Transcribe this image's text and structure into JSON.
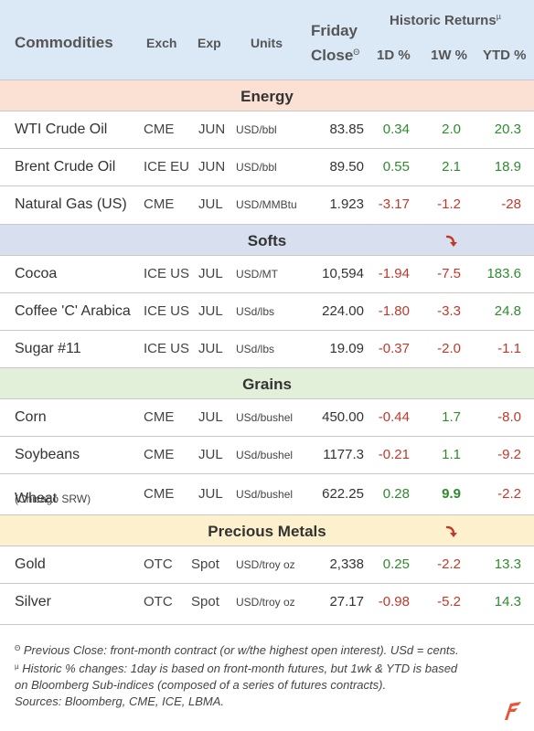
{
  "header": {
    "commodities": "Commodities",
    "exch": "Exch",
    "exp": "Exp",
    "units": "Units",
    "friday": "Friday",
    "close": "Close",
    "close_mark": "Θ",
    "historic": "Historic Returns",
    "historic_mark": "µ",
    "d1": "1D %",
    "w1": "1W %",
    "ytd": "YTD %"
  },
  "sections": {
    "energy": "Energy",
    "softs": "Softs",
    "grains": "Grains",
    "metals": "Precious Metals"
  },
  "rows": {
    "wti": {
      "name": "WTI Crude Oil",
      "exch": "CME",
      "exp": "JUN",
      "units": "USD/bbl",
      "close": "83.85",
      "d1": "0.34",
      "w1": "2.0",
      "ytd": "20.3"
    },
    "brent": {
      "name": "Brent Crude Oil",
      "exch": "ICE EU",
      "exp": "JUN",
      "units": "USD/bbl",
      "close": "89.50",
      "d1": "0.55",
      "w1": "2.1",
      "ytd": "18.9"
    },
    "natgas": {
      "name": "Natural Gas (US)",
      "exch": "CME",
      "exp": "JUL",
      "units": "USD/MMBtu",
      "close": "1.923",
      "d1": "-3.17",
      "w1": "-1.2",
      "ytd": "-28"
    },
    "cocoa": {
      "name": "Cocoa",
      "exch": "ICE US",
      "exp": "JUL",
      "units": "USD/MT",
      "close": "10,594",
      "d1": "-1.94",
      "w1": "-7.5",
      "ytd": "183.6"
    },
    "coffee": {
      "name": "Coffee 'C' Arabica",
      "exch": "ICE US",
      "exp": "JUL",
      "units": "USd/lbs",
      "close": "224.00",
      "d1": "-1.80",
      "w1": "-3.3",
      "ytd": "24.8"
    },
    "sugar": {
      "name": "Sugar #11",
      "exch": "ICE US",
      "exp": "JUL",
      "units": "USd/lbs",
      "close": "19.09",
      "d1": "-0.37",
      "w1": "-2.0",
      "ytd": "-1.1"
    },
    "corn": {
      "name": "Corn",
      "exch": "CME",
      "exp": "JUL",
      "units": "USd/bushel",
      "close": "450.00",
      "d1": "-0.44",
      "w1": "1.7",
      "ytd": "-8.0"
    },
    "soy": {
      "name": "Soybeans",
      "exch": "CME",
      "exp": "JUL",
      "units": "USd/bushel",
      "close": "1177.3",
      "d1": "-0.21",
      "w1": "1.1",
      "ytd": "-9.2"
    },
    "wheat": {
      "name": "Wheat",
      "sub": "(Chicago SRW)",
      "exch": "CME",
      "exp": "JUL",
      "units": "USd/bushel",
      "close": "622.25",
      "d1": "0.28",
      "w1": "9.9",
      "ytd": "-2.2"
    },
    "gold": {
      "name": "Gold",
      "exch": "OTC",
      "exp": "Spot",
      "units": "USD/troy oz",
      "close": "2,338",
      "d1": "0.25",
      "w1": "-2.2",
      "ytd": "13.3"
    },
    "silver": {
      "name": "Silver",
      "exch": "OTC",
      "exp": "Spot",
      "units": "USD/troy oz",
      "close": "27.17",
      "d1": "-0.98",
      "w1": "-5.2",
      "ytd": "14.3"
    }
  },
  "notes": {
    "mark1": "Θ",
    "line1": " Previous Close: front-month contract (or w/the highest open interest). USd = cents.",
    "mark2": "µ",
    "line2": " Historic % changes: 1day is based on front-month futures, but 1wk & YTD is based",
    "line3": "on Bloomberg Sub-indices (composed of a series of futures contracts).",
    "line4": "Sources: Bloomberg, CME, ICE, LBMA."
  },
  "colors": {
    "positive": "#2e8b2e",
    "negative": "#c0392b",
    "arrow": "#c0392b",
    "logo": "#e8543a"
  },
  "icons": {
    "down_arrow": "curved-down-arrow-icon",
    "logo": "brand-logo-icon"
  }
}
